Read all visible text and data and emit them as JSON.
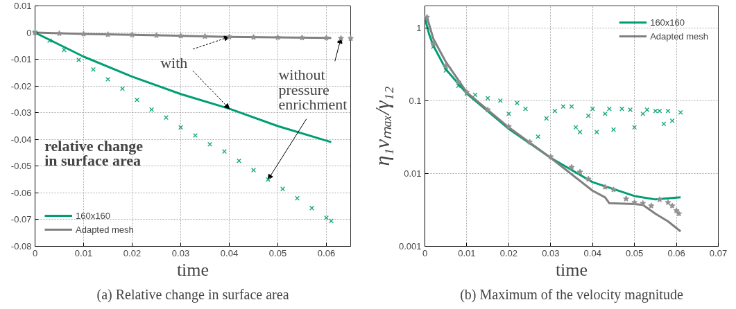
{
  "chart_data": [
    {
      "type": "line",
      "title": "(a) Relative change in surface area",
      "xlabel": "time",
      "xlim": [
        0,
        0.065
      ],
      "xticks": [
        0,
        0.01,
        0.02,
        0.03,
        0.04,
        0.05,
        0.06
      ],
      "ylim": [
        -0.08,
        0.01
      ],
      "yticks": [
        -0.08,
        -0.07,
        -0.06,
        -0.05,
        -0.04,
        -0.03,
        -0.02,
        -0.01,
        0,
        0.01
      ],
      "grid": true,
      "legend": "bottom left",
      "annotations": [
        {
          "text": "with",
          "x": 0.04,
          "y": -0.0285
        },
        {
          "text": "without\npressure\nenrichment",
          "x": 0.063,
          "y": -0.0021
        },
        "relative change\nin surface area"
      ],
      "series": [
        {
          "name": "160x160",
          "color": "#009e73",
          "x": [
            0,
            0.01,
            0.02,
            0.03,
            0.04,
            0.05,
            0.061
          ],
          "values": [
            0,
            -0.009,
            -0.0165,
            -0.023,
            -0.0285,
            -0.035,
            -0.041
          ]
        },
        {
          "name": "Adapted mesh",
          "color": "#808080",
          "x": [
            0,
            0.01,
            0.02,
            0.03,
            0.04,
            0.05,
            0.061
          ],
          "values": [
            0,
            -0.0005,
            -0.0008,
            -0.0012,
            -0.0016,
            -0.0018,
            -0.002
          ]
        },
        {
          "type": "scatter",
          "marker": "cross",
          "color": "#009e73",
          "x": [
            0,
            0.003,
            0.006,
            0.009,
            0.012,
            0.015,
            0.018,
            0.021,
            0.024,
            0.027,
            0.03,
            0.033,
            0.036,
            0.039,
            0.042,
            0.045,
            0.048,
            0.051,
            0.054,
            0.057,
            0.06,
            0.061
          ],
          "values": [
            0,
            -0.003,
            -0.0065,
            -0.0102,
            -0.0138,
            -0.0175,
            -0.021,
            -0.0252,
            -0.0288,
            -0.0318,
            -0.0355,
            -0.0385,
            -0.0418,
            -0.0445,
            -0.048,
            -0.0515,
            -0.055,
            -0.0585,
            -0.062,
            -0.0657,
            -0.0693,
            -0.0705
          ]
        },
        {
          "type": "scatter",
          "marker": "star",
          "color": "#909090",
          "x": [
            0,
            0.005,
            0.01,
            0.015,
            0.02,
            0.025,
            0.03,
            0.035,
            0.04,
            0.045,
            0.05,
            0.055,
            0.06,
            0.063,
            0.065
          ],
          "values": [
            0,
            -0.0003,
            -0.0005,
            -0.0007,
            -0.0008,
            -0.001,
            -0.0012,
            -0.0014,
            -0.0016,
            -0.0017,
            -0.0018,
            -0.0019,
            -0.002,
            -0.0021,
            -0.0022
          ]
        }
      ]
    },
    {
      "type": "line",
      "title": "(b) Maximum of the velocity magnitude",
      "xlabel": "time",
      "ylabel": "η₁vₘₐₓ/γ₁₂",
      "log": true,
      "xlim": [
        0,
        0.07
      ],
      "xticks": [
        0,
        0.01,
        0.02,
        0.03,
        0.04,
        0.05,
        0.06,
        0.07
      ],
      "ylim": [
        0.001,
        2
      ],
      "yticks": [
        0.001,
        0.01,
        0.1,
        1
      ],
      "grid": true,
      "legend": "top right",
      "series": [
        {
          "name": "160x160",
          "color": "#009e73",
          "x": [
            0,
            0.001,
            0.002,
            0.005,
            0.01,
            0.02,
            0.03,
            0.04,
            0.05,
            0.055,
            0.061
          ],
          "values": [
            1.37,
            0.82,
            0.57,
            0.27,
            0.125,
            0.041,
            0.0164,
            0.0076,
            0.0049,
            0.0044,
            0.0047
          ]
        },
        {
          "name": "Adapted mesh",
          "color": "#808080",
          "x": [
            0.0005,
            0.002,
            0.005,
            0.01,
            0.02,
            0.03,
            0.04,
            0.043,
            0.044,
            0.05,
            0.052,
            0.055,
            0.058,
            0.061
          ],
          "values": [
            1.4,
            0.71,
            0.34,
            0.13,
            0.043,
            0.0164,
            0.0058,
            0.0047,
            0.0039,
            0.0038,
            0.0037,
            0.0028,
            0.0022,
            0.0016
          ]
        },
        {
          "type": "scatter",
          "marker": "cross",
          "color": "#009e73",
          "x": [
            0.002,
            0.005,
            0.008,
            0.01,
            0.012,
            0.015,
            0.018,
            0.02,
            0.022,
            0.024,
            0.027,
            0.029,
            0.031,
            0.033,
            0.035,
            0.036,
            0.037,
            0.039,
            0.04,
            0.041,
            0.043,
            0.044,
            0.045,
            0.047,
            0.049,
            0.05,
            0.052,
            0.053,
            0.055,
            0.056,
            0.057,
            0.058,
            0.059,
            0.061
          ],
          "values": [
            0.55,
            0.26,
            0.16,
            0.125,
            0.12,
            0.108,
            0.1,
            0.066,
            0.093,
            0.077,
            0.032,
            0.057,
            0.072,
            0.083,
            0.083,
            0.043,
            0.037,
            0.062,
            0.077,
            0.037,
            0.066,
            0.077,
            0.04,
            0.077,
            0.075,
            0.043,
            0.066,
            0.075,
            0.072,
            0.072,
            0.048,
            0.072,
            0.053,
            0.069
          ]
        },
        {
          "type": "scatter",
          "marker": "star",
          "color": "#909090",
          "x": [
            0.0005,
            0.002,
            0.005,
            0.008,
            0.01,
            0.015,
            0.02,
            0.025,
            0.03,
            0.035,
            0.037,
            0.039,
            0.043,
            0.045,
            0.048,
            0.05,
            0.052,
            0.054,
            0.056,
            0.058,
            0.059,
            0.06,
            0.0606
          ],
          "values": [
            1.4,
            0.6,
            0.3,
            0.18,
            0.13,
            0.075,
            0.044,
            0.027,
            0.017,
            0.0122,
            0.0105,
            0.0084,
            0.0065,
            0.006,
            0.0045,
            0.004,
            0.0039,
            0.0036,
            0.0044,
            0.004,
            0.0036,
            0.0031,
            0.0028
          ]
        }
      ]
    }
  ]
}
